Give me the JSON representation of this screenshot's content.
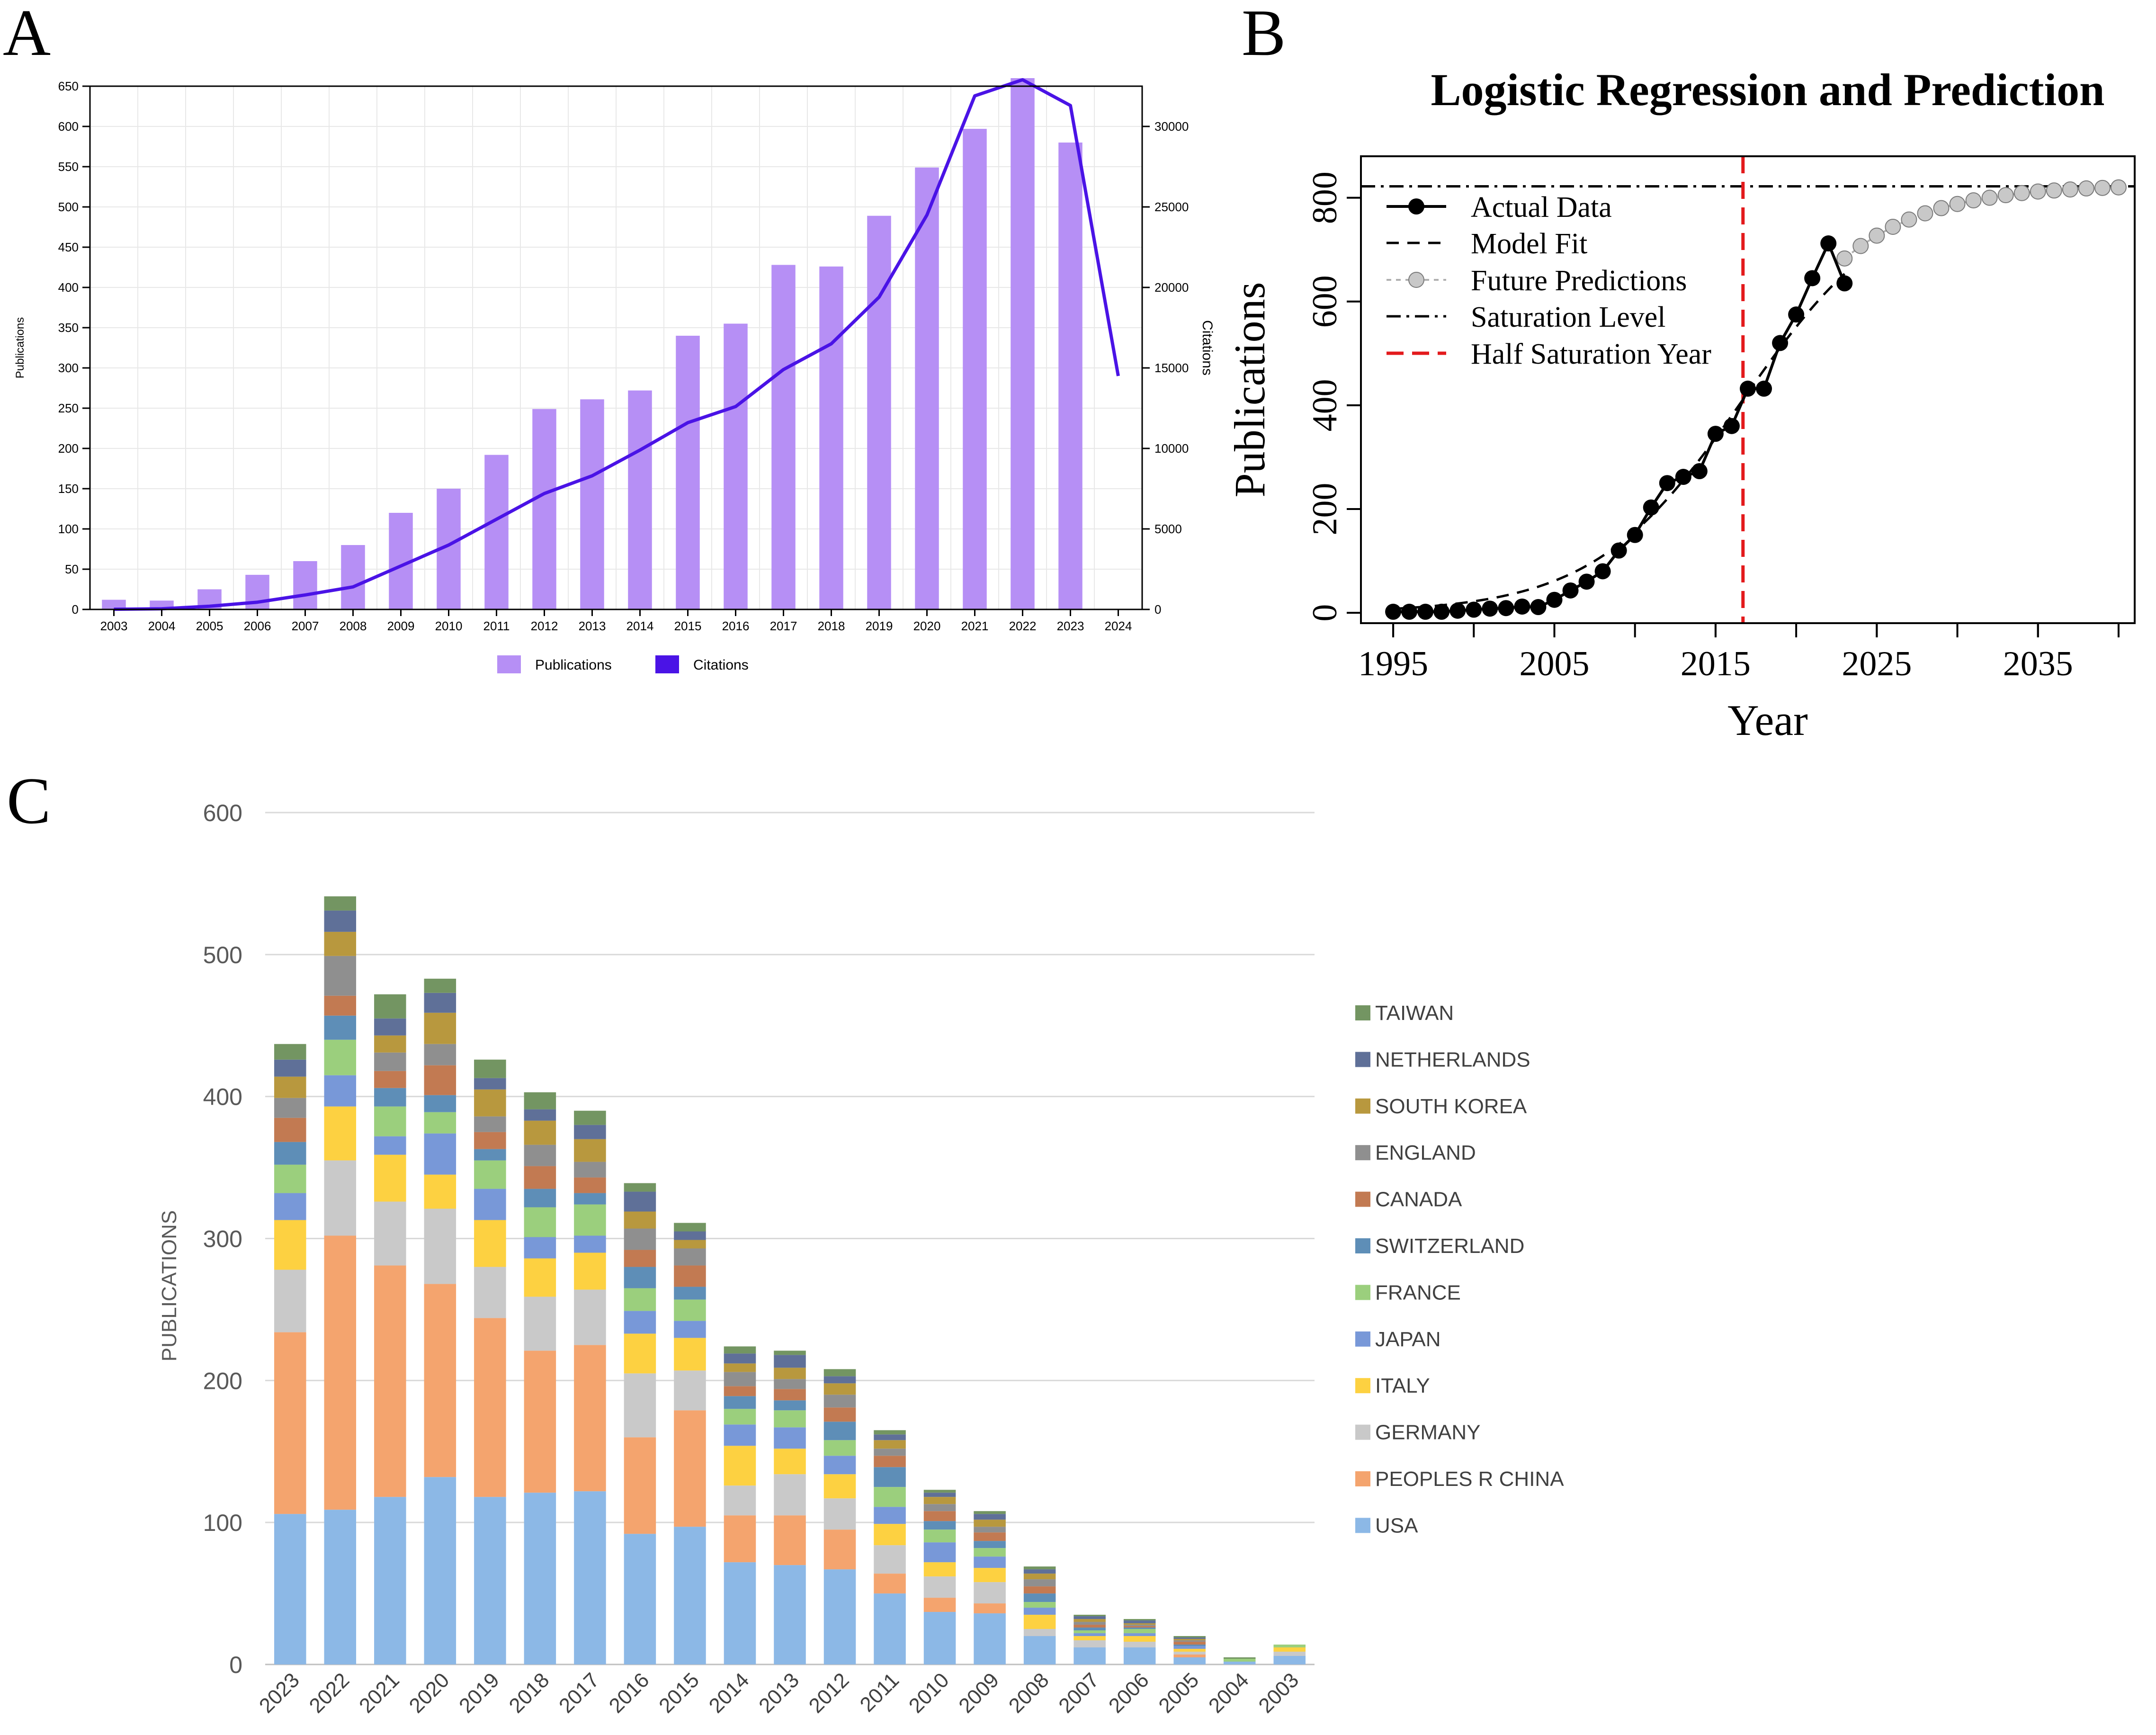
{
  "panels": {
    "a": "A",
    "b": "B",
    "c": "C"
  },
  "colors": {
    "publications_bar": "#B68FF5",
    "citations_line": "#4A13E6",
    "grid_a": "#E8E8E8",
    "red_vline": "#E31A1C",
    "future_point": "#C8C8C8",
    "grid_c": "#D9D9D9"
  },
  "chart_data": [
    {
      "type": "bar",
      "panel": "A",
      "categories": [
        "2003",
        "2004",
        "2005",
        "2006",
        "2007",
        "2008",
        "2009",
        "2010",
        "2011",
        "2012",
        "2013",
        "2014",
        "2015",
        "2016",
        "2017",
        "2018",
        "2019",
        "2020",
        "2021",
        "2022",
        "2023",
        "2024"
      ],
      "series": [
        {
          "name": "Publications",
          "axis": "left",
          "type": "bar",
          "values": [
            12,
            11,
            25,
            43,
            60,
            80,
            120,
            150,
            192,
            249,
            261,
            272,
            340,
            355,
            428,
            426,
            489,
            549,
            597,
            660,
            580,
            null
          ]
        },
        {
          "name": "Citations",
          "axis": "right",
          "type": "line",
          "values": [
            10,
            40,
            200,
            450,
            900,
            1400,
            2700,
            4000,
            5600,
            7200,
            8300,
            9900,
            11600,
            12600,
            14900,
            16500,
            19400,
            24500,
            31900,
            32900,
            31300,
            14500
          ]
        }
      ],
      "yticks_left": [
        0,
        50,
        100,
        150,
        200,
        250,
        300,
        350,
        400,
        450,
        500,
        550,
        600,
        650
      ],
      "yticks_right": [
        0,
        5000,
        10000,
        15000,
        20000,
        25000,
        30000
      ],
      "ylim_left": [
        0,
        650
      ],
      "ylim_right": [
        0,
        32500
      ],
      "ylabel_left": "Publications",
      "ylabel_right": "Citations",
      "legend": [
        "Publications",
        "Citations"
      ],
      "legend_position": "bottom-center",
      "grid": true
    },
    {
      "type": "scatter",
      "panel": "B",
      "title": "Logistic Regression and Prediction",
      "xlabel": "Year",
      "ylabel": "Publications",
      "xlim": [
        1993,
        2041
      ],
      "ylim": [
        -20,
        880
      ],
      "xticks": [
        1995,
        2005,
        2015,
        2025,
        2035
      ],
      "yticks": [
        0,
        200,
        400,
        600,
        800
      ],
      "saturation_level": 822,
      "half_saturation_year": 2016.7,
      "logistic": {
        "K": 822,
        "r": 0.215,
        "t0": 2016.7
      },
      "actual": {
        "x": [
          1995,
          1996,
          1997,
          1998,
          1999,
          2000,
          2001,
          2002,
          2003,
          2004,
          2005,
          2006,
          2007,
          2008,
          2009,
          2010,
          2011,
          2012,
          2013,
          2014,
          2015,
          2016,
          2017,
          2018,
          2019,
          2020,
          2021,
          2022,
          2023
        ],
        "y": [
          2,
          2,
          2,
          2,
          4,
          6,
          8,
          9,
          12,
          11,
          25,
          43,
          60,
          80,
          120,
          150,
          203,
          250,
          262,
          273,
          345,
          360,
          432,
          432,
          520,
          575,
          645,
          712,
          635
        ]
      },
      "future": {
        "x": [
          2023,
          2024,
          2025,
          2026,
          2027,
          2028,
          2029,
          2030,
          2031,
          2032,
          2033,
          2034,
          2035,
          2036,
          2037,
          2038,
          2039,
          2040
        ],
        "y": [
          683,
          707,
          727,
          744,
          758,
          770,
          780,
          788,
          795,
          800,
          805,
          809,
          812,
          814,
          816,
          818,
          819,
          820
        ]
      },
      "legend": [
        "Actual Data",
        "Model Fit",
        "Future Predictions",
        "Saturation Level",
        "Half Saturation Year"
      ],
      "legend_position": "top-left"
    },
    {
      "type": "bar",
      "stacked": true,
      "panel": "C",
      "ylabel": "PUBLICATIONS",
      "ylim": [
        0,
        600
      ],
      "yticks": [
        0,
        100,
        200,
        300,
        400,
        500,
        600
      ],
      "categories": [
        "2023",
        "2022",
        "2021",
        "2020",
        "2019",
        "2018",
        "2017",
        "2016",
        "2015",
        "2014",
        "2013",
        "2012",
        "2011",
        "2010",
        "2009",
        "2008",
        "2007",
        "2006",
        "2005",
        "2004",
        "2003"
      ],
      "series": [
        {
          "name": "USA",
          "color": "#8CB8E6",
          "values": [
            106,
            109,
            118,
            132,
            118,
            121,
            122,
            92,
            97,
            72,
            70,
            67,
            50,
            37,
            36,
            20,
            12,
            12,
            5,
            2,
            6
          ]
        },
        {
          "name": "PEOPLES R CHINA",
          "color": "#F4A46E",
          "values": [
            128,
            193,
            163,
            136,
            126,
            100,
            103,
            68,
            82,
            33,
            35,
            28,
            14,
            10,
            7,
            0,
            0,
            0,
            2,
            0,
            0
          ]
        },
        {
          "name": "GERMANY",
          "color": "#C9C9C9",
          "values": [
            44,
            53,
            45,
            53,
            36,
            38,
            39,
            45,
            28,
            21,
            29,
            22,
            20,
            15,
            15,
            5,
            5,
            4,
            2,
            0,
            3
          ]
        },
        {
          "name": "ITALY",
          "color": "#FDD141",
          "values": [
            35,
            38,
            33,
            24,
            33,
            27,
            26,
            28,
            23,
            28,
            18,
            17,
            15,
            10,
            10,
            10,
            3,
            4,
            2,
            0,
            3
          ]
        },
        {
          "name": "JAPAN",
          "color": "#7898D8",
          "values": [
            19,
            22,
            13,
            29,
            22,
            15,
            12,
            16,
            12,
            15,
            15,
            13,
            12,
            14,
            8,
            5,
            2,
            2,
            2,
            0,
            0
          ]
        },
        {
          "name": "FRANCE",
          "color": "#9BCF7D",
          "values": [
            20,
            25,
            21,
            15,
            20,
            21,
            22,
            16,
            15,
            11,
            12,
            11,
            14,
            9,
            6,
            4,
            2,
            3,
            0,
            2,
            2
          ]
        },
        {
          "name": "SWITZERLAND",
          "color": "#5E8EB7",
          "values": [
            16,
            17,
            13,
            12,
            8,
            13,
            8,
            15,
            9,
            9,
            7,
            13,
            14,
            6,
            5,
            6,
            2,
            1,
            1,
            0,
            0
          ]
        },
        {
          "name": "CANADA",
          "color": "#C27A52",
          "values": [
            17,
            14,
            12,
            21,
            12,
            16,
            11,
            12,
            15,
            7,
            8,
            10,
            8,
            7,
            6,
            5,
            2,
            1,
            2,
            0,
            0
          ]
        },
        {
          "name": "ENGLAND",
          "color": "#8F8F8F",
          "values": [
            14,
            28,
            13,
            15,
            11,
            15,
            11,
            15,
            12,
            10,
            7,
            9,
            5,
            5,
            4,
            5,
            2,
            1,
            1,
            0,
            0
          ]
        },
        {
          "name": "SOUTH KOREA",
          "color": "#B8983E",
          "values": [
            15,
            17,
            12,
            22,
            19,
            17,
            16,
            12,
            6,
            6,
            8,
            8,
            6,
            5,
            5,
            4,
            2,
            1,
            1,
            0,
            0
          ]
        },
        {
          "name": "NETHERLANDS",
          "color": "#5F7098",
          "values": [
            12,
            15,
            12,
            14,
            8,
            8,
            10,
            14,
            6,
            7,
            9,
            5,
            4,
            3,
            4,
            3,
            2,
            2,
            1,
            0,
            0
          ]
        },
        {
          "name": "TAIWAN",
          "color": "#739562",
          "values": [
            11,
            10,
            17,
            10,
            13,
            12,
            10,
            6,
            6,
            5,
            3,
            5,
            3,
            2,
            2,
            2,
            1,
            1,
            1,
            1,
            0
          ]
        }
      ],
      "legend_position": "right"
    }
  ]
}
